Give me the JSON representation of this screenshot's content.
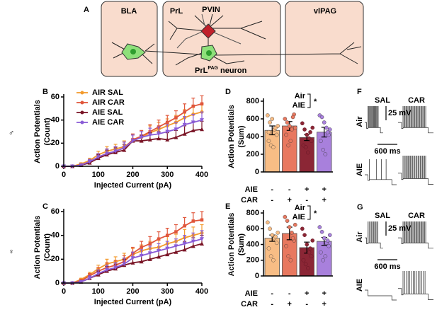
{
  "diagram": {
    "panel": "A",
    "regions": [
      "BLA",
      "PrL",
      "vlPAG"
    ],
    "cell_label": "PVIN",
    "neuron": "PrL",
    "neuron_sup": "PAG",
    "neuron_suffix": " neuron"
  },
  "sex_symbols": [
    "♂",
    "♀"
  ],
  "traces": [
    {
      "panel": "F",
      "columns": [
        "SAL",
        "CAR"
      ],
      "rows": [
        "Air",
        "AIE"
      ],
      "scale_v": "25 mV",
      "scale_t": "600 ms"
    },
    {
      "panel": "G",
      "columns": [
        "SAL",
        "CAR"
      ],
      "rows": [
        "Air",
        "AIE"
      ],
      "scale_v": "25 mV",
      "scale_t": "600 ms"
    }
  ],
  "chart_data": [
    {
      "type": "line",
      "panel": "B",
      "xlabel": "Injected Current (pA)",
      "ylabel": [
        "Action Potentials",
        "(Count)"
      ],
      "x": [
        0,
        25,
        50,
        75,
        100,
        125,
        150,
        175,
        200,
        225,
        250,
        275,
        300,
        325,
        350,
        375,
        400
      ],
      "xlim": [
        0,
        400
      ],
      "xticks": [
        0,
        100,
        200,
        300,
        400
      ],
      "ylim": [
        0,
        60
      ],
      "yticks": [
        0,
        20,
        40,
        60
      ],
      "series": [
        {
          "name": "AIR SAL",
          "color": "#f39a2c",
          "values": [
            0,
            0,
            2,
            5,
            10,
            13,
            15,
            17,
            22,
            25,
            29,
            32,
            35,
            38,
            42,
            45,
            47
          ],
          "errors": [
            0,
            0,
            1,
            2,
            3,
            4,
            4,
            5,
            5,
            5,
            6,
            6,
            6,
            6,
            7,
            7,
            7
          ]
        },
        {
          "name": "AIR CAR",
          "color": "#e0563b",
          "values": [
            0,
            0,
            1,
            4,
            8,
            11,
            13,
            16,
            23,
            26,
            30,
            34,
            38,
            42,
            47,
            52,
            54
          ],
          "errors": [
            0,
            0,
            1,
            2,
            3,
            4,
            4,
            5,
            5,
            5,
            6,
            6,
            6,
            6,
            7,
            7,
            7
          ]
        },
        {
          "name": "AIE SAL",
          "color": "#7a1526",
          "values": [
            0,
            0,
            1,
            3,
            7,
            10,
            12,
            14,
            22,
            22,
            23,
            24,
            23,
            25,
            28,
            31,
            32
          ],
          "errors": [
            0,
            0,
            1,
            2,
            3,
            4,
            4,
            5,
            5,
            5,
            6,
            6,
            6,
            6,
            7,
            7,
            7
          ]
        },
        {
          "name": "AIE CAR",
          "color": "#8a5cd6",
          "values": [
            0,
            0,
            1,
            4,
            8,
            11,
            13,
            16,
            22,
            25,
            27,
            28,
            30,
            32,
            36,
            38,
            40
          ],
          "errors": [
            0,
            0,
            1,
            2,
            3,
            4,
            4,
            5,
            5,
            5,
            6,
            6,
            6,
            6,
            7,
            7,
            7
          ]
        }
      ]
    },
    {
      "type": "line",
      "panel": "C",
      "xlabel": "Injected Current (pA)",
      "ylabel": [
        "Action Potentials",
        "(Count)"
      ],
      "x": [
        0,
        25,
        50,
        75,
        100,
        125,
        150,
        175,
        200,
        225,
        250,
        275,
        300,
        325,
        350,
        375,
        400
      ],
      "xlim": [
        0,
        400
      ],
      "xticks": [
        0,
        100,
        200,
        300,
        400
      ],
      "ylim": [
        0,
        60
      ],
      "yticks": [
        0,
        20,
        40,
        60
      ],
      "series": [
        {
          "color": "#f39a2c",
          "values": [
            0,
            0,
            3,
            7,
            12,
            16,
            18,
            20,
            24,
            27,
            29,
            30,
            33,
            35,
            38,
            40,
            42
          ],
          "errors": [
            0,
            0,
            1,
            2,
            3,
            4,
            4,
            5,
            5,
            5,
            6,
            6,
            6,
            6,
            7,
            7,
            7
          ]
        },
        {
          "color": "#e0563b",
          "values": [
            0,
            0,
            2,
            6,
            10,
            13,
            15,
            18,
            25,
            30,
            33,
            37,
            40,
            43,
            48,
            52,
            53
          ],
          "errors": [
            0,
            0,
            1,
            2,
            3,
            4,
            4,
            5,
            5,
            5,
            6,
            6,
            6,
            6,
            7,
            7,
            7
          ]
        },
        {
          "color": "#7a1526",
          "values": [
            0,
            0,
            1,
            4,
            7,
            10,
            12,
            15,
            17,
            18,
            20,
            22,
            24,
            26,
            28,
            31,
            33
          ],
          "errors": [
            0,
            0,
            1,
            2,
            3,
            4,
            4,
            5,
            5,
            5,
            6,
            6,
            6,
            6,
            7,
            7,
            7
          ]
        },
        {
          "color": "#8a5cd6",
          "values": [
            0,
            0,
            1,
            4,
            8,
            11,
            13,
            16,
            21,
            23,
            25,
            27,
            29,
            31,
            33,
            35,
            37
          ],
          "errors": [
            0,
            0,
            1,
            2,
            3,
            4,
            4,
            5,
            5,
            5,
            6,
            6,
            6,
            6,
            7,
            7,
            7
          ]
        }
      ]
    },
    {
      "type": "bar",
      "panel": "D",
      "ylabel": [
        "Action Potentials",
        "(Sum)"
      ],
      "ylim": [
        0,
        800
      ],
      "yticks": [
        0,
        200,
        400,
        600,
        800
      ],
      "colors": [
        "#f8bd85",
        "#e8785f",
        "#8b2635",
        "#a880dc"
      ],
      "values": [
        470,
        520,
        390,
        450
      ],
      "errors": [
        50,
        50,
        35,
        55
      ],
      "points": [
        [
          640,
          560,
          600,
          480,
          420,
          350,
          300,
          280,
          500,
          520,
          450
        ],
        [
          600,
          560,
          520,
          480,
          650,
          420,
          300,
          350,
          620,
          500
        ],
        [
          550,
          480,
          420,
          380,
          350,
          300,
          280,
          220,
          450,
          500
        ],
        [
          640,
          620,
          560,
          500,
          420,
          350,
          250,
          200,
          450,
          480
        ]
      ],
      "legend": [
        "Air",
        "AIE"
      ],
      "significance": "*",
      "rows": [
        {
          "label": "AIE",
          "signs": [
            "-",
            "-",
            "+",
            "+"
          ]
        },
        {
          "label": "CAR",
          "signs": [
            "-",
            "+",
            "-",
            "+"
          ]
        }
      ]
    },
    {
      "type": "bar",
      "panel": "E",
      "ylabel": [
        "Action Potentials",
        "(Sum)"
      ],
      "ylim": [
        0,
        800
      ],
      "yticks": [
        0,
        200,
        400,
        600,
        800
      ],
      "colors": [
        "#f8bd85",
        "#e8785f",
        "#8b2635",
        "#a880dc"
      ],
      "values": [
        480,
        540,
        360,
        440
      ],
      "errors": [
        40,
        80,
        70,
        50
      ],
      "points": [
        [
          680,
          600,
          520,
          480,
          420,
          350,
          250,
          200,
          500,
          550
        ],
        [
          750,
          700,
          620,
          550,
          450,
          380,
          250,
          200,
          480,
          650
        ],
        [
          600,
          520,
          400,
          300,
          250,
          200,
          150,
          100,
          350,
          450
        ],
        [
          620,
          560,
          480,
          420,
          380,
          300,
          200,
          250,
          450,
          520
        ]
      ],
      "legend": [
        "Air",
        "AIE"
      ],
      "significance": "*",
      "rows": [
        {
          "label": "AIE",
          "signs": [
            "-",
            "-",
            "+",
            "+"
          ]
        },
        {
          "label": "CAR",
          "signs": [
            "-",
            "+",
            "-",
            "+"
          ]
        }
      ]
    }
  ]
}
